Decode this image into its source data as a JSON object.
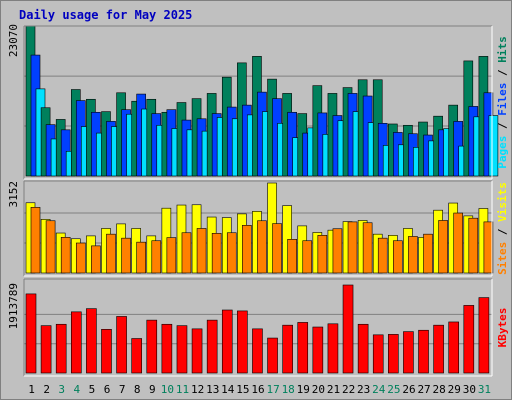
{
  "chart_data": {
    "type": "bar",
    "title": "Daily usage for May 2025",
    "categories": [
      "1",
      "2",
      "3",
      "4",
      "5",
      "6",
      "7",
      "8",
      "9",
      "10",
      "11",
      "12",
      "13",
      "14",
      "15",
      "16",
      "17",
      "18",
      "19",
      "20",
      "21",
      "22",
      "23",
      "24",
      "25",
      "26",
      "27",
      "28",
      "29",
      "30",
      "31"
    ],
    "weekend_days": [
      "3",
      "4",
      "10",
      "11",
      "17",
      "18",
      "24",
      "25",
      "31"
    ],
    "colors": {
      "hits": "#00805c",
      "files": "#0040ff",
      "pages": "#00e0ff",
      "visits": "#ffff00",
      "sites": "#ff8000",
      "kbytes": "#ff0000",
      "weekday_label": "#000000",
      "weekend_label": "#00805c",
      "title": "#0000c0",
      "background": "#c0c0c0"
    },
    "panels": [
      {
        "id": "top",
        "ylabel_max": "23070",
        "ylim": [
          0,
          23070
        ],
        "right_labels": [
          {
            "text": "Pages",
            "color": "#00e0ff"
          },
          {
            "text": " / ",
            "color": "#000000"
          },
          {
            "text": "Files",
            "color": "#0040ff"
          },
          {
            "text": " / ",
            "color": "#000000"
          },
          {
            "text": "Hits",
            "color": "#00805c"
          }
        ],
        "series": [
          {
            "name": "Hits",
            "color": "#00805c",
            "values": [
              23070,
              10500,
              8700,
              13300,
              11800,
              9900,
              12800,
              11500,
              11800,
              9800,
              11300,
              11900,
              12700,
              15200,
              17400,
              18400,
              14900,
              12700,
              9600,
              13900,
              12700,
              13600,
              14800,
              14800,
              8000,
              7800,
              8300,
              9200,
              10900,
              17700,
              18400
            ]
          },
          {
            "name": "Files",
            "color": "#0040ff",
            "values": [
              18600,
              7900,
              7100,
              11600,
              9800,
              8400,
              10200,
              12600,
              9600,
              10200,
              8600,
              8800,
              9600,
              10600,
              10900,
              12900,
              11900,
              9800,
              6600,
              9700,
              9300,
              12700,
              12300,
              8100,
              6700,
              6500,
              6300,
              7100,
              8400,
              10700,
              12800
            ]
          },
          {
            "name": "Pages",
            "color": "#00e0ff",
            "values": [
              13400,
              5700,
              3800,
              7600,
              6600,
              7600,
              9500,
              10300,
              7800,
              7300,
              7100,
              6900,
              9000,
              8800,
              9400,
              9900,
              8100,
              5900,
              7400,
              6400,
              8500,
              9900,
              8200,
              4700,
              4800,
              4400,
              5400,
              7300,
              4600,
              9100,
              9300
            ]
          }
        ]
      },
      {
        "id": "middle",
        "ylabel_max": "3152",
        "ylim": [
          0,
          3152
        ],
        "right_labels": [
          {
            "text": "Sites",
            "color": "#ff8000"
          },
          {
            "text": " / ",
            "color": "#000000"
          },
          {
            "text": "Visits",
            "color": "#ffff00"
          }
        ],
        "series": [
          {
            "name": "Visits",
            "color": "#ffff00",
            "values": [
              2460,
              1880,
              1400,
              1200,
              1300,
              1560,
              1720,
              1560,
              1300,
              2270,
              2380,
              2390,
              1960,
              1940,
              2070,
              2160,
              3152,
              2360,
              1650,
              1420,
              1500,
              1800,
              1840,
              1360,
              1320,
              1560,
              1250,
              2200,
              2450,
              2000,
              2260
            ]
          },
          {
            "name": "Sites",
            "color": "#ff8000",
            "values": [
              2300,
              1830,
              1250,
              1050,
              950,
              1360,
              1220,
              1080,
              1130,
              1240,
              1410,
              1560,
              1390,
              1410,
              1670,
              1830,
              1730,
              1180,
              1130,
              1320,
              1550,
              1790,
              1760,
              1220,
              1130,
              1280,
              1360,
              1840,
              2100,
              1920,
              1790
            ]
          }
        ]
      },
      {
        "id": "bottom",
        "ylabel_max": "1913789",
        "ylim": [
          0,
          1913789
        ],
        "right_labels": [
          {
            "text": "KBytes",
            "color": "#ff0000"
          }
        ],
        "series": [
          {
            "name": "KBytes",
            "color": "#ff0000",
            "values": [
              1720000,
              1030000,
              1060000,
              1330000,
              1400000,
              950000,
              1230000,
              750000,
              1150000,
              1060000,
              1030000,
              960000,
              1150000,
              1370000,
              1350000,
              960000,
              760000,
              1040000,
              1100000,
              1000000,
              1070000,
              1913789,
              1060000,
              830000,
              840000,
              900000,
              930000,
              1040000,
              1110000,
              1470000,
              1640000
            ]
          }
        ]
      }
    ]
  }
}
